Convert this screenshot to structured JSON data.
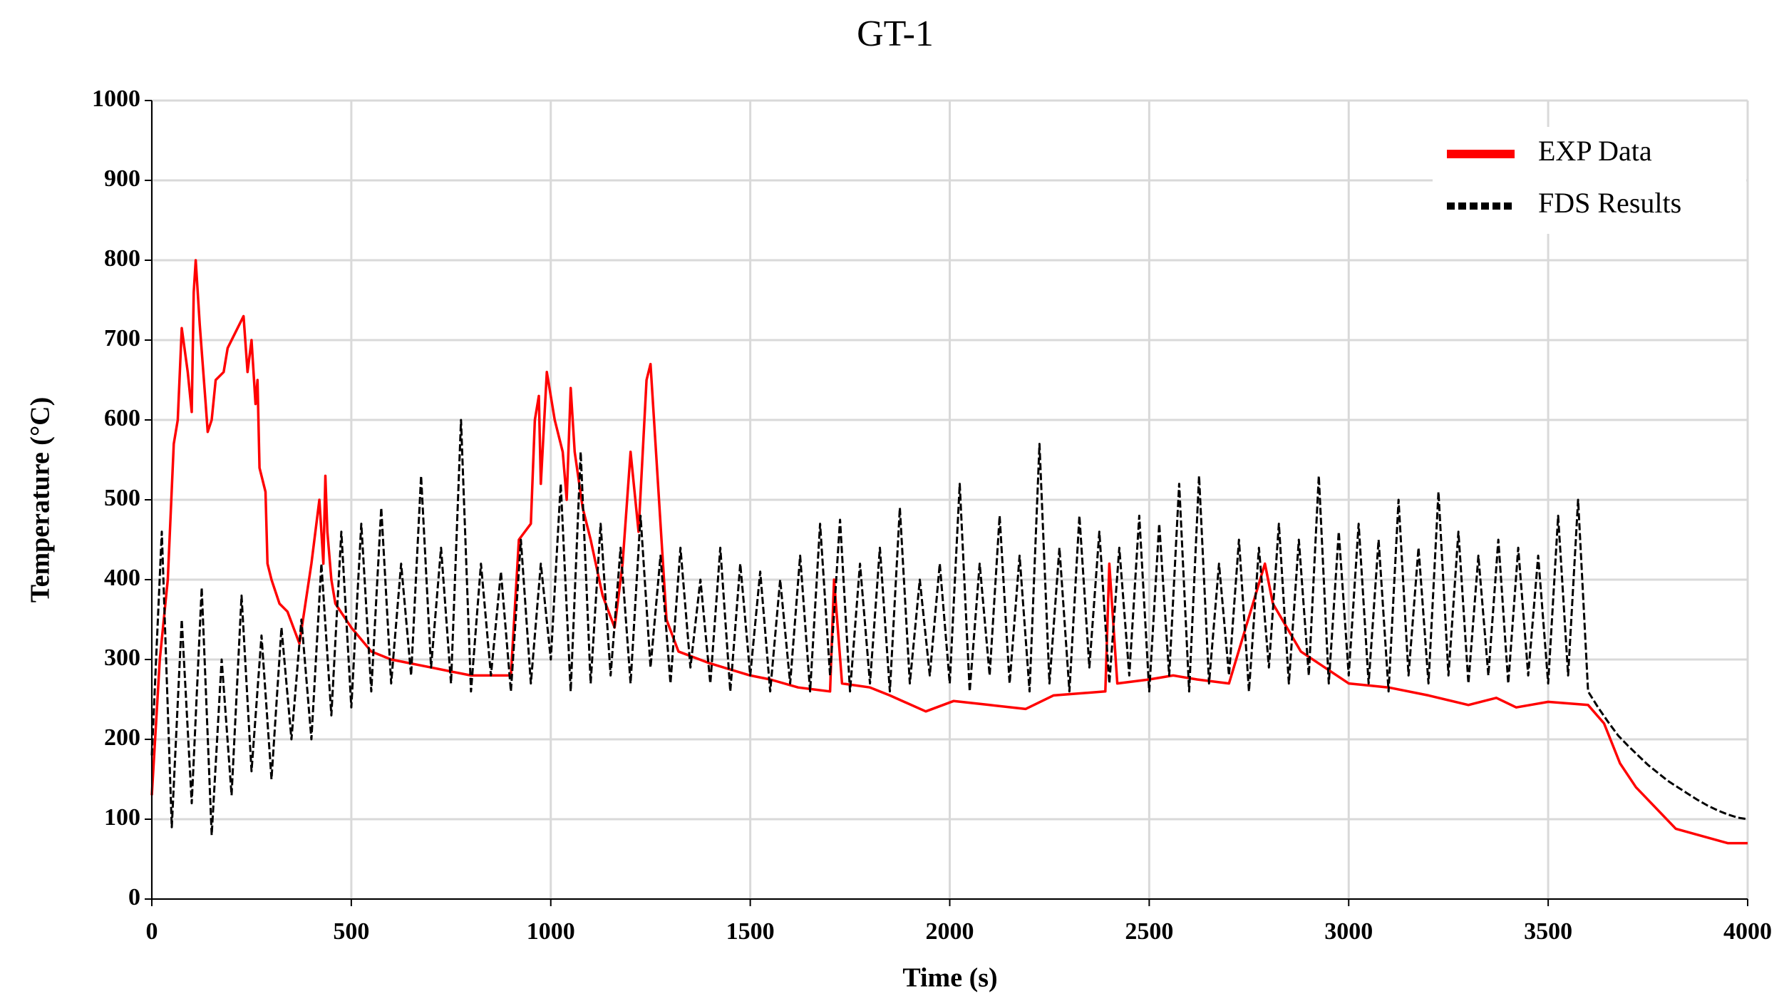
{
  "chart_data": {
    "type": "line",
    "title": "GT-1",
    "x_label": "Time (s)",
    "y_label": "Temperature (°C)",
    "xlim": [
      0,
      4000
    ],
    "ylim": [
      0,
      1000
    ],
    "xticks": [
      0,
      500,
      1000,
      1500,
      2000,
      2500,
      3000,
      3500,
      4000
    ],
    "yticks": [
      0,
      100,
      200,
      300,
      400,
      500,
      600,
      700,
      800,
      900,
      1000
    ],
    "grid": true,
    "legend": "upper right",
    "series": [
      {
        "name": "EXP Data",
        "color": "#ff0000",
        "style": "solid",
        "x": [
          0,
          20,
          40,
          55,
          65,
          75,
          90,
          100,
          105,
          110,
          120,
          135,
          140,
          150,
          160,
          180,
          190,
          230,
          240,
          250,
          260,
          265,
          270,
          285,
          290,
          300,
          320,
          340,
          370,
          400,
          420,
          430,
          435,
          440,
          450,
          460,
          500,
          550,
          600,
          700,
          800,
          900,
          920,
          950,
          960,
          970,
          975,
          990,
          1010,
          1030,
          1040,
          1050,
          1060,
          1080,
          1100,
          1130,
          1160,
          1180,
          1200,
          1220,
          1240,
          1250,
          1270,
          1290,
          1320,
          1400,
          1500,
          1550,
          1620,
          1700,
          1710,
          1730,
          1800,
          1850,
          1940,
          2010,
          2100,
          2190,
          2260,
          2390,
          2400,
          2420,
          2500,
          2560,
          2620,
          2700,
          2790,
          2810,
          2880,
          3000,
          3100,
          3200,
          3300,
          3370,
          3420,
          3500,
          3600,
          3640,
          3680,
          3720,
          3820,
          3950,
          4000
        ],
        "values": [
          130,
          300,
          400,
          570,
          600,
          715,
          660,
          610,
          760,
          800,
          720,
          620,
          585,
          600,
          650,
          660,
          690,
          730,
          660,
          700,
          620,
          650,
          540,
          510,
          420,
          400,
          370,
          360,
          320,
          420,
          500,
          420,
          530,
          460,
          400,
          370,
          340,
          310,
          300,
          290,
          280,
          280,
          450,
          470,
          600,
          630,
          520,
          660,
          600,
          560,
          500,
          640,
          560,
          490,
          450,
          380,
          340,
          420,
          560,
          460,
          650,
          670,
          510,
          350,
          310,
          295,
          280,
          275,
          265,
          260,
          400,
          270,
          265,
          255,
          235,
          248,
          243,
          238,
          255,
          260,
          420,
          270,
          275,
          280,
          275,
          270,
          420,
          370,
          310,
          270,
          265,
          255,
          243,
          252,
          240,
          247,
          243,
          220,
          170,
          140,
          88,
          70,
          70
        ]
      },
      {
        "name": "FDS Results",
        "color": "#000000",
        "style": "dashed",
        "x": [
          0,
          25,
          50,
          75,
          100,
          125,
          150,
          175,
          200,
          225,
          250,
          275,
          300,
          325,
          350,
          375,
          400,
          425,
          450,
          475,
          500,
          525,
          550,
          575,
          600,
          625,
          650,
          675,
          700,
          725,
          750,
          775,
          800,
          825,
          850,
          875,
          900,
          925,
          950,
          975,
          1000,
          1025,
          1050,
          1075,
          1100,
          1125,
          1150,
          1175,
          1200,
          1225,
          1250,
          1275,
          1300,
          1325,
          1350,
          1375,
          1400,
          1425,
          1450,
          1475,
          1500,
          1525,
          1550,
          1575,
          1600,
          1625,
          1650,
          1675,
          1700,
          1725,
          1750,
          1775,
          1800,
          1825,
          1850,
          1875,
          1900,
          1925,
          1950,
          1975,
          2000,
          2025,
          2050,
          2075,
          2100,
          2125,
          2150,
          2175,
          2200,
          2225,
          2250,
          2275,
          2300,
          2325,
          2350,
          2375,
          2400,
          2425,
          2450,
          2475,
          2500,
          2525,
          2550,
          2575,
          2600,
          2625,
          2650,
          2675,
          2700,
          2725,
          2750,
          2775,
          2800,
          2825,
          2850,
          2875,
          2900,
          2925,
          2950,
          2975,
          3000,
          3025,
          3050,
          3075,
          3100,
          3125,
          3150,
          3175,
          3200,
          3225,
          3250,
          3275,
          3300,
          3325,
          3350,
          3375,
          3400,
          3425,
          3450,
          3475,
          3500,
          3525,
          3550,
          3575,
          3600,
          3625,
          3650,
          3675,
          3700,
          3725,
          3750,
          3775,
          3800,
          3825,
          3850,
          3875,
          3900,
          3925,
          3950,
          3975,
          4000
        ],
        "values": [
          180,
          460,
          90,
          350,
          120,
          390,
          80,
          300,
          130,
          380,
          160,
          330,
          150,
          340,
          200,
          350,
          200,
          420,
          230,
          460,
          240,
          470,
          260,
          490,
          270,
          420,
          280,
          530,
          290,
          440,
          270,
          600,
          260,
          420,
          280,
          410,
          260,
          450,
          270,
          420,
          300,
          520,
          260,
          560,
          270,
          470,
          280,
          440,
          270,
          480,
          290,
          430,
          270,
          440,
          290,
          400,
          270,
          440,
          260,
          420,
          280,
          410,
          260,
          400,
          270,
          430,
          260,
          470,
          280,
          475,
          260,
          420,
          270,
          440,
          260,
          490,
          270,
          400,
          280,
          420,
          270,
          520,
          260,
          420,
          280,
          480,
          270,
          430,
          260,
          570,
          270,
          440,
          260,
          480,
          290,
          460,
          270,
          440,
          280,
          480,
          260,
          470,
          280,
          520,
          260,
          530,
          270,
          420,
          280,
          450,
          260,
          440,
          290,
          470,
          270,
          450,
          280,
          530,
          270,
          460,
          280,
          470,
          270,
          450,
          260,
          500,
          280,
          440,
          270,
          510,
          280,
          460,
          270,
          430,
          280,
          450,
          270,
          440,
          280,
          430,
          270,
          480,
          280,
          500,
          260,
          240,
          222,
          205,
          192,
          180,
          168,
          158,
          148,
          140,
          132,
          124,
          117,
          111,
          106,
          102,
          100
        ]
      }
    ]
  }
}
